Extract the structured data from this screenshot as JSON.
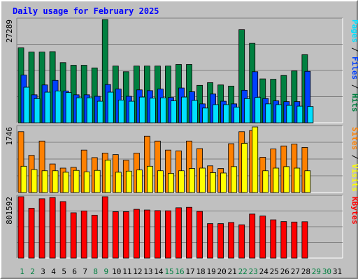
{
  "chart_data": {
    "type": "bar",
    "title": "Daily usage for February 2025",
    "days": [
      "1",
      "2",
      "3",
      "4",
      "5",
      "6",
      "7",
      "8",
      "9",
      "10",
      "11",
      "12",
      "13",
      "14",
      "15",
      "16",
      "17",
      "18",
      "19",
      "20",
      "21",
      "22",
      "23",
      "24",
      "25",
      "26",
      "27",
      "28",
      "29",
      "30",
      "31"
    ],
    "weekend_days": [
      1,
      2,
      8,
      9,
      15,
      16,
      22,
      23,
      29,
      30
    ],
    "panels": [
      {
        "max_label": "27289",
        "ymax": 27289,
        "side_label": {
          "parts": [
            "Pages",
            " / ",
            "Files",
            " / ",
            "Hits"
          ],
          "colors": [
            "#00e0ff",
            "#000000",
            "#0040ff",
            "#000000",
            "#008040"
          ]
        },
        "series": [
          {
            "name": "Hits",
            "color": "#008040",
            "values": [
              19800,
              18700,
              18700,
              18800,
              15900,
              15200,
              15200,
              14500,
              27289,
              15000,
              13500,
              15000,
              15000,
              15000,
              15000,
              15400,
              15400,
              9900,
              10600,
              10000,
              9700,
              24600,
              21000,
              11600,
              11500,
              12500,
              13700,
              18000,
              0,
              0,
              0
            ]
          },
          {
            "name": "Files",
            "color": "#0040ff",
            "values": [
              12600,
              7400,
              10000,
              11200,
              8400,
              7400,
              7400,
              7000,
              10100,
              8900,
              7000,
              8700,
              8500,
              8900,
              6700,
              9200,
              8200,
              5000,
              7600,
              5700,
              5000,
              8600,
              13500,
              6400,
              5800,
              5600,
              5600,
              13600,
              0,
              0,
              0
            ]
          },
          {
            "name": "Pages",
            "color": "#00e0ff",
            "values": [
              9400,
              6400,
              8100,
              8400,
              8000,
              6600,
              6600,
              5700,
              8100,
              6000,
              5700,
              6800,
              6500,
              6600,
              5800,
              6800,
              5900,
              3900,
              4800,
              4800,
              4100,
              6400,
              6700,
              5000,
              4800,
              4600,
              4400,
              4300,
              0,
              0,
              0
            ]
          }
        ]
      },
      {
        "max_label": "1746",
        "ymax": 1746,
        "side_label": {
          "parts": [
            "Sites",
            " / ",
            "Visits"
          ],
          "colors": [
            "#ff8000",
            "#000000",
            "#ffff00"
          ]
        },
        "series": [
          {
            "name": "Sites",
            "color": "#ff8000",
            "values": [
              1620,
              990,
              1370,
              760,
              650,
              670,
              1130,
              930,
              1050,
              1010,
              860,
              1050,
              1500,
              1370,
              1130,
              1110,
              1370,
              1170,
              710,
              640,
              1300,
              1620,
              1650,
              940,
              1160,
              1240,
              1290,
              1200,
              0,
              0,
              0
            ]
          },
          {
            "name": "Visits",
            "color": "#ffff00",
            "values": [
              700,
              610,
              580,
              580,
              540,
              590,
              550,
              590,
              860,
              540,
              570,
              600,
              700,
              580,
              510,
              580,
              640,
              650,
              530,
              520,
              690,
              1310,
              1746,
              580,
              650,
              690,
              650,
              580,
              0,
              0,
              0
            ]
          }
        ]
      },
      {
        "max_label": "801592",
        "ymax": 801592,
        "side_label": {
          "parts": [
            "KBytes"
          ],
          "colors": [
            "#ff0000"
          ]
        },
        "series": [
          {
            "name": "KBytes",
            "color": "#ff0000",
            "values": [
              801592,
              651000,
              775000,
              791000,
              738000,
              592000,
              616000,
              560000,
              801592,
              606000,
              606000,
              637000,
              628000,
              620000,
              618000,
              657000,
              663000,
              610000,
              450000,
              450000,
              465000,
              435000,
              575000,
              549000,
              500000,
              477000,
              471000,
              475000,
              0,
              0,
              0
            ]
          }
        ]
      }
    ],
    "grid": true
  }
}
